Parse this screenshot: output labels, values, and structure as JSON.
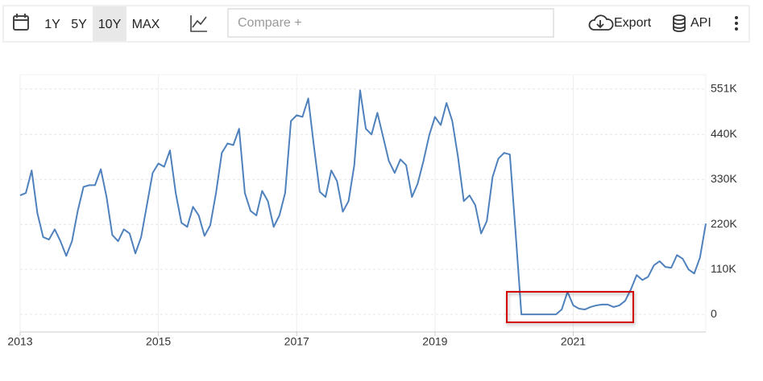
{
  "toolbar": {
    "ranges": [
      "1Y",
      "5Y",
      "10Y",
      "MAX"
    ],
    "compare": "Compare +",
    "export": "Export",
    "api": "API"
  },
  "chart_data": {
    "type": "line",
    "color": "#4f81bd",
    "grid": true,
    "xlim": [
      2013,
      2022.917
    ],
    "xticks": [
      2013,
      2015,
      2017,
      2019,
      2021
    ],
    "ylim": [
      -43000,
      586000
    ],
    "yticks": [
      {
        "value": 0,
        "label": "0"
      },
      {
        "value": 110000,
        "label": "110K"
      },
      {
        "value": 220000,
        "label": "220K"
      },
      {
        "value": 330000,
        "label": "330K"
      },
      {
        "value": 440000,
        "label": "440K"
      },
      {
        "value": 551000,
        "label": "551K"
      }
    ],
    "x": [
      2013,
      2013.083,
      2013.167,
      2013.25,
      2013.333,
      2013.417,
      2013.5,
      2013.583,
      2013.667,
      2013.75,
      2013.833,
      2013.917,
      2014,
      2014.083,
      2014.167,
      2014.25,
      2014.333,
      2014.417,
      2014.5,
      2014.583,
      2014.667,
      2014.75,
      2014.833,
      2014.917,
      2015,
      2015.083,
      2015.167,
      2015.25,
      2015.333,
      2015.417,
      2015.5,
      2015.583,
      2015.667,
      2015.75,
      2015.833,
      2015.917,
      2016,
      2016.083,
      2016.167,
      2016.25,
      2016.333,
      2016.417,
      2016.5,
      2016.583,
      2016.667,
      2016.75,
      2016.833,
      2016.917,
      2017,
      2017.083,
      2017.167,
      2017.25,
      2017.333,
      2017.417,
      2017.5,
      2017.583,
      2017.667,
      2017.75,
      2017.833,
      2017.917,
      2018,
      2018.083,
      2018.167,
      2018.25,
      2018.333,
      2018.417,
      2018.5,
      2018.583,
      2018.667,
      2018.75,
      2018.833,
      2018.917,
      2019,
      2019.083,
      2019.167,
      2019.25,
      2019.333,
      2019.417,
      2019.5,
      2019.583,
      2019.667,
      2019.75,
      2019.833,
      2019.917,
      2020,
      2020.083,
      2020.167,
      2020.25,
      2020.333,
      2020.417,
      2020.5,
      2020.583,
      2020.667,
      2020.75,
      2020.833,
      2020.917,
      2021,
      2021.083,
      2021.167,
      2021.25,
      2021.333,
      2021.417,
      2021.5,
      2021.583,
      2021.667,
      2021.75,
      2021.833,
      2021.917,
      2022,
      2022.083,
      2022.167,
      2022.25,
      2022.333,
      2022.417,
      2022.5,
      2022.583,
      2022.667,
      2022.75,
      2022.833,
      2022.917
    ],
    "values": [
      291000,
      297000,
      352000,
      247000,
      189000,
      183000,
      208000,
      179000,
      143000,
      179000,
      253000,
      312000,
      316000,
      316000,
      355000,
      287000,
      194000,
      179000,
      208000,
      198000,
      149000,
      189000,
      267000,
      346000,
      369000,
      361000,
      401000,
      297000,
      224000,
      214000,
      263000,
      242000,
      192000,
      218000,
      297000,
      395000,
      418000,
      414000,
      454000,
      297000,
      253000,
      242000,
      302000,
      277000,
      214000,
      242000,
      297000,
      473000,
      487000,
      483000,
      528000,
      410000,
      300000,
      287000,
      352000,
      326000,
      251000,
      277000,
      365000,
      548000,
      454000,
      440000,
      493000,
      434000,
      375000,
      346000,
      379000,
      365000,
      287000,
      320000,
      375000,
      438000,
      483000,
      463000,
      517000,
      473000,
      385000,
      277000,
      291000,
      267000,
      198000,
      228000,
      336000,
      381000,
      395000,
      391000,
      198000,
      0,
      0,
      0,
      0,
      0,
      0,
      0,
      12000,
      55000,
      22000,
      14000,
      12000,
      18000,
      22000,
      24000,
      24000,
      18000,
      22000,
      33000,
      61000,
      96000,
      84000,
      92000,
      120000,
      130000,
      116000,
      114000,
      145000,
      136000,
      110000,
      100000,
      139000,
      222000
    ]
  }
}
